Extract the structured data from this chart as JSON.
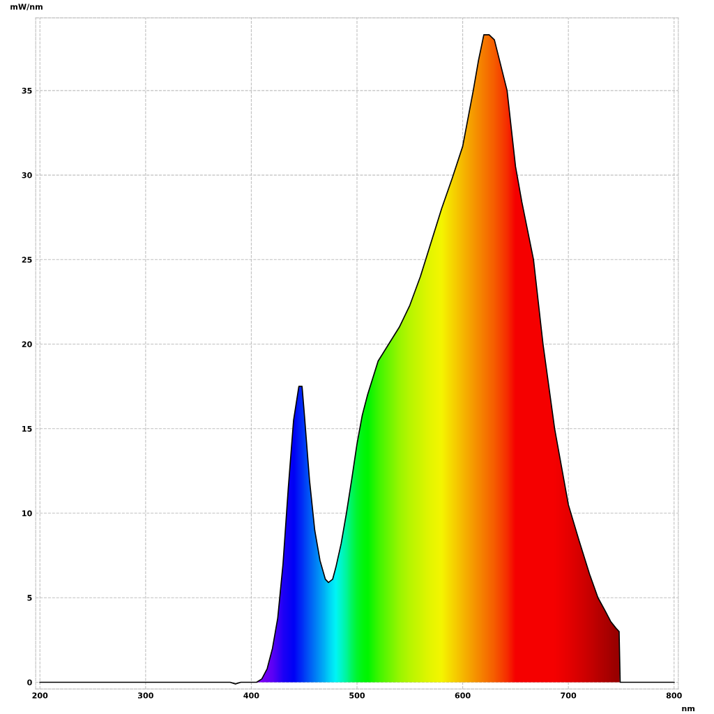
{
  "chart_data": {
    "type": "area",
    "xlabel": "nm",
    "ylabel": "mW/nm",
    "xlim": [
      196,
      804
    ],
    "ylim": [
      -0.4,
      39.3
    ],
    "xticks": [
      200,
      300,
      400,
      500,
      600,
      700,
      800
    ],
    "yticks": [
      0,
      5,
      10,
      15,
      20,
      25,
      30,
      35
    ],
    "grid": true,
    "series": [
      {
        "color": "#000000",
        "x": [
          200,
          380,
          385,
          390,
          400,
          405,
          410,
          415,
          420,
          425,
          430,
          435,
          440,
          445,
          448,
          450,
          455,
          460,
          465,
          470,
          473,
          477,
          480,
          485,
          490,
          495,
          500,
          505,
          510,
          520,
          530,
          540,
          550,
          560,
          570,
          580,
          590,
          600,
          610,
          615,
          620,
          625,
          630,
          642,
          650,
          656,
          667,
          676,
          687,
          700,
          710,
          720,
          728,
          735,
          740,
          745,
          748,
          749,
          760,
          800
        ],
        "values": [
          0,
          0,
          -0.1,
          0,
          0,
          0,
          0.2,
          0.8,
          2,
          3.8,
          7,
          11.5,
          15.5,
          17.5,
          17.5,
          16,
          12,
          9,
          7.2,
          6.1,
          5.9,
          6.1,
          6.8,
          8.2,
          10,
          12,
          14.1,
          15.8,
          17,
          19,
          20,
          21,
          22.3,
          24,
          26,
          28,
          29.8,
          31.7,
          35,
          36.8,
          38.3,
          38.3,
          38,
          35,
          30.5,
          28.4,
          25,
          20,
          15,
          10.5,
          8.4,
          6.4,
          5,
          4.2,
          3.6,
          3.2,
          3,
          0,
          0,
          0
        ],
        "colors": [
          "#ffffff",
          "#ffffff",
          "#ffffff",
          "#ffffff",
          "#9000ff",
          "#8800ff",
          "#8000ff",
          "#7000ff",
          "#6000ff",
          "#4000ff",
          "#2000ff",
          "#1000ff",
          "#0000ff",
          "#0020ff",
          "#0030ff",
          "#0040ff",
          "#0060ff",
          "#0080ff",
          "#00a0ff",
          "#00c0ff",
          "#00d8ff",
          "#00f0ff",
          "#00ffff",
          "#00ffd0",
          "#00ffa0",
          "#00ff60",
          "#00ff30",
          "#00ff10",
          "#00ff00",
          "#40ff00",
          "#70ff00",
          "#a0ff00",
          "#c0ff00",
          "#d8ff00",
          "#f0ff00",
          "#ffff00",
          "#ffe000",
          "#ffc000",
          "#ffa000",
          "#ff9000",
          "#ff8000",
          "#ff7000",
          "#ff6000",
          "#ff3000",
          "#ff0000",
          "#ff0000",
          "#ff0000",
          "#ff0000",
          "#ff0000",
          "#f00000",
          "#e00000",
          "#d00000",
          "#c00000",
          "#b40000",
          "#aa0000",
          "#a00000",
          "#a00000",
          "#ffffff",
          "#ffffff",
          "#ffffff"
        ]
      }
    ]
  }
}
